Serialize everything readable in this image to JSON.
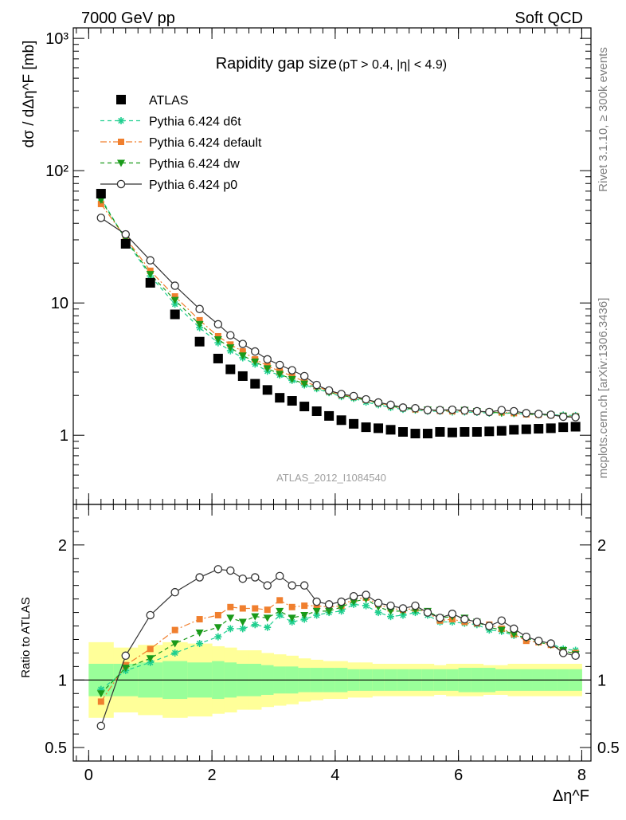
{
  "header": {
    "left": "7000 GeV pp",
    "right": "Soft QCD"
  },
  "side": {
    "rivet": "Rivet 3.1.10, ≥ 300k events",
    "mcplots": "mcplots.cern.ch [arXiv:1306.3436]"
  },
  "chart_data": [
    {
      "type": "scatter",
      "title": "Rapidity gap size",
      "title_suffix": "(pT > 0.4, |η| < 4.9)",
      "ylabel": "dσ / dΔη^F [mb]",
      "xlabel": "Δη^F",
      "yscale": "log",
      "xlim": [
        -0.25,
        8.15
      ],
      "ylim": [
        0.3,
        1200
      ],
      "y_ticks": [
        {
          "v": 1,
          "label": "1"
        },
        {
          "v": 10,
          "label": "10"
        },
        {
          "v": 100,
          "label": "10²"
        },
        {
          "v": 1000,
          "label": "10³"
        }
      ],
      "watermark": "ATLAS_2012_I1084540",
      "legend": {
        "position": "top-left"
      },
      "x": [
        0.2,
        0.6,
        1.0,
        1.4,
        1.8,
        2.1,
        2.3,
        2.5,
        2.7,
        2.9,
        3.1,
        3.3,
        3.5,
        3.7,
        3.9,
        4.1,
        4.3,
        4.5,
        4.7,
        4.9,
        5.1,
        5.3,
        5.5,
        5.7,
        5.9,
        6.1,
        6.3,
        6.5,
        6.7,
        6.9,
        7.1,
        7.3,
        7.5,
        7.7,
        7.9
      ],
      "series": [
        {
          "name": "ATLAS",
          "color": "#000000",
          "marker": "square",
          "line": "none",
          "values": [
            67,
            28,
            14.2,
            8.2,
            5.1,
            3.8,
            3.15,
            2.8,
            2.45,
            2.2,
            1.92,
            1.82,
            1.65,
            1.52,
            1.4,
            1.3,
            1.22,
            1.15,
            1.13,
            1.1,
            1.06,
            1.03,
            1.03,
            1.06,
            1.05,
            1.06,
            1.06,
            1.07,
            1.08,
            1.1,
            1.11,
            1.12,
            1.13,
            1.15,
            1.16
          ]
        },
        {
          "name": "Pythia 6.424 d6t",
          "color": "#1fcf8f",
          "marker": "star",
          "line": "dashed",
          "values": [
            62,
            30,
            16,
            9.8,
            6.5,
            5.0,
            4.35,
            3.85,
            3.45,
            3.05,
            2.85,
            2.6,
            2.4,
            2.25,
            2.1,
            1.96,
            1.9,
            1.78,
            1.7,
            1.62,
            1.57,
            1.55,
            1.52,
            1.52,
            1.5,
            1.5,
            1.49,
            1.47,
            1.47,
            1.46,
            1.45,
            1.44,
            1.43,
            1.42,
            1.41
          ]
        },
        {
          "name": "Pythia 6.424 default",
          "color": "#f07f2e",
          "marker": "square-small",
          "line": "dashdot",
          "values": [
            56,
            31,
            17.5,
            11.2,
            7.4,
            5.6,
            4.85,
            4.3,
            3.75,
            3.35,
            3.05,
            2.8,
            2.55,
            2.35,
            2.15,
            2.02,
            1.95,
            1.85,
            1.76,
            1.68,
            1.61,
            1.57,
            1.55,
            1.53,
            1.52,
            1.52,
            1.51,
            1.5,
            1.49,
            1.47,
            1.44,
            1.43,
            1.42,
            1.4,
            1.39
          ]
        },
        {
          "name": "Pythia 6.424 dw",
          "color": "#1a9a1a",
          "marker": "triangle-down",
          "line": "dashed",
          "values": [
            60,
            30.5,
            16.5,
            10.5,
            6.9,
            5.3,
            4.6,
            4.0,
            3.6,
            3.2,
            2.9,
            2.65,
            2.45,
            2.3,
            2.12,
            2.0,
            1.93,
            1.84,
            1.74,
            1.66,
            1.6,
            1.57,
            1.56,
            1.55,
            1.54,
            1.55,
            1.52,
            1.49,
            1.48,
            1.47,
            1.45,
            1.43,
            1.42,
            1.4,
            1.38
          ]
        },
        {
          "name": "Pythia 6.424 p0",
          "color": "#333333",
          "marker": "circle-open",
          "line": "solid",
          "values": [
            44,
            33,
            21,
            13.5,
            9.0,
            6.9,
            5.7,
            4.9,
            4.3,
            3.75,
            3.4,
            3.1,
            2.8,
            2.4,
            2.18,
            2.05,
            1.98,
            1.87,
            1.77,
            1.7,
            1.62,
            1.6,
            1.55,
            1.55,
            1.56,
            1.54,
            1.52,
            1.5,
            1.55,
            1.52,
            1.47,
            1.45,
            1.43,
            1.38,
            1.37
          ]
        }
      ]
    },
    {
      "type": "scatter",
      "ylabel": "Ratio to ATLAS",
      "xlabel": "Δη^F",
      "xlim": [
        -0.25,
        8.15
      ],
      "ylim": [
        0.4,
        2.3
      ],
      "x_ticks": [
        0,
        2,
        4,
        6,
        8
      ],
      "y_ticks": [
        {
          "v": 0.5,
          "label": "0.5"
        },
        {
          "v": 1,
          "label": "1"
        },
        {
          "v": 2,
          "label": "2"
        }
      ],
      "bands": {
        "x_edges": [
          0.0,
          0.4,
          0.8,
          1.2,
          1.6,
          2.0,
          2.2,
          2.4,
          2.6,
          2.8,
          3.0,
          3.2,
          3.4,
          3.6,
          3.8,
          4.0,
          4.2,
          4.4,
          4.6,
          4.8,
          5.0,
          5.2,
          5.4,
          5.6,
          5.8,
          6.0,
          6.2,
          6.4,
          6.6,
          6.8,
          7.0,
          7.2,
          7.4,
          7.6,
          7.8,
          8.0
        ],
        "stat_half_widths": [
          0.12,
          0.12,
          0.13,
          0.14,
          0.13,
          0.14,
          0.13,
          0.12,
          0.12,
          0.11,
          0.1,
          0.1,
          0.09,
          0.09,
          0.09,
          0.09,
          0.08,
          0.08,
          0.08,
          0.08,
          0.08,
          0.08,
          0.08,
          0.08,
          0.08,
          0.09,
          0.09,
          0.09,
          0.08,
          0.08,
          0.08,
          0.08,
          0.08,
          0.08,
          0.08
        ],
        "total_half_widths": [
          0.28,
          0.24,
          0.26,
          0.28,
          0.27,
          0.25,
          0.24,
          0.22,
          0.22,
          0.2,
          0.19,
          0.18,
          0.16,
          0.15,
          0.14,
          0.14,
          0.13,
          0.13,
          0.12,
          0.12,
          0.12,
          0.12,
          0.12,
          0.11,
          0.12,
          0.12,
          0.12,
          0.11,
          0.11,
          0.12,
          0.12,
          0.12,
          0.12,
          0.12,
          0.12
        ],
        "stat_color": "#99ff99",
        "total_color": "#ffff99"
      },
      "x": [
        0.2,
        0.6,
        1.0,
        1.4,
        1.8,
        2.1,
        2.3,
        2.5,
        2.7,
        2.9,
        3.1,
        3.3,
        3.5,
        3.7,
        3.9,
        4.1,
        4.3,
        4.5,
        4.7,
        4.9,
        5.1,
        5.3,
        5.5,
        5.7,
        5.9,
        6.1,
        6.3,
        6.5,
        6.7,
        6.9,
        7.1,
        7.3,
        7.5,
        7.7,
        7.9
      ],
      "series": [
        {
          "name": "Pythia 6.424 d6t",
          "color": "#1fcf8f",
          "marker": "star",
          "line": "dashed",
          "values": [
            0.93,
            1.07,
            1.13,
            1.2,
            1.27,
            1.32,
            1.38,
            1.38,
            1.41,
            1.39,
            1.48,
            1.43,
            1.45,
            1.48,
            1.5,
            1.51,
            1.56,
            1.55,
            1.5,
            1.47,
            1.48,
            1.5,
            1.48,
            1.43,
            1.43,
            1.42,
            1.41,
            1.37,
            1.36,
            1.33,
            1.31,
            1.29,
            1.27,
            1.23,
            1.22
          ]
        },
        {
          "name": "Pythia 6.424 default",
          "color": "#f07f2e",
          "marker": "square-small",
          "line": "dashdot",
          "values": [
            0.84,
            1.11,
            1.23,
            1.37,
            1.45,
            1.48,
            1.54,
            1.53,
            1.53,
            1.52,
            1.59,
            1.54,
            1.55,
            1.55,
            1.54,
            1.55,
            1.6,
            1.61,
            1.56,
            1.53,
            1.52,
            1.53,
            1.5,
            1.44,
            1.45,
            1.43,
            1.42,
            1.41,
            1.38,
            1.34,
            1.29,
            1.28,
            1.26,
            1.21,
            1.2
          ]
        },
        {
          "name": "Pythia 6.424 dw",
          "color": "#1a9a1a",
          "marker": "triangle-down",
          "line": "dashed",
          "values": [
            0.9,
            1.09,
            1.16,
            1.27,
            1.35,
            1.39,
            1.46,
            1.43,
            1.47,
            1.46,
            1.51,
            1.46,
            1.48,
            1.51,
            1.51,
            1.54,
            1.58,
            1.6,
            1.54,
            1.51,
            1.51,
            1.52,
            1.51,
            1.46,
            1.47,
            1.46,
            1.43,
            1.39,
            1.37,
            1.34,
            1.31,
            1.28,
            1.26,
            1.22,
            1.19
          ]
        },
        {
          "name": "Pythia 6.424 p0",
          "color": "#333333",
          "marker": "circle-open",
          "line": "solid",
          "values": [
            0.66,
            1.18,
            1.48,
            1.65,
            1.76,
            1.82,
            1.81,
            1.75,
            1.76,
            1.7,
            1.77,
            1.7,
            1.7,
            1.58,
            1.56,
            1.58,
            1.62,
            1.63,
            1.57,
            1.55,
            1.53,
            1.55,
            1.5,
            1.46,
            1.49,
            1.45,
            1.43,
            1.4,
            1.44,
            1.38,
            1.32,
            1.29,
            1.27,
            1.2,
            1.18
          ]
        }
      ]
    }
  ]
}
